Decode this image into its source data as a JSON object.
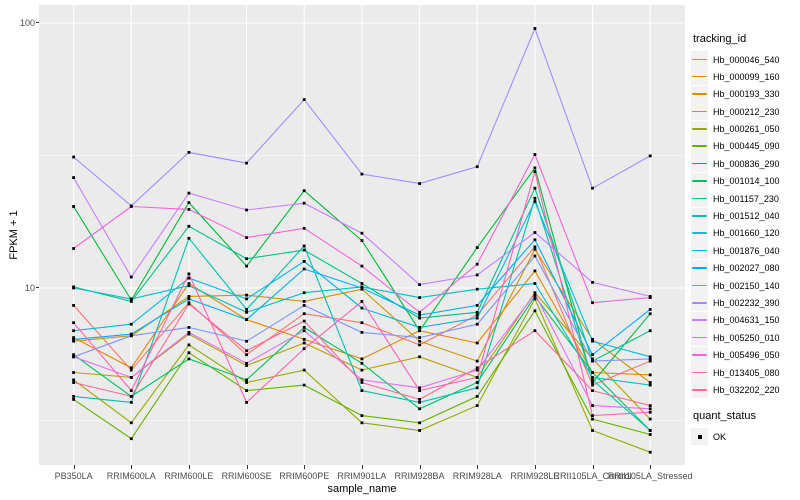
{
  "figure": {
    "background": "#FFFFFF",
    "panel_bg": "#EBEBEB",
    "grid_color": "#FFFFFF",
    "axis_text_color": "#4D4D4D",
    "axis_title_color": "#000000",
    "point_color": "#000000"
  },
  "chart_data": {
    "type": "line",
    "title": "",
    "xlabel": "sample_name",
    "ylabel": "FPKM + 1",
    "y_scale": "log10",
    "ylim": [
      2.15,
      117
    ],
    "y_ticks": [
      100,
      10
    ],
    "y_tick_labels": [
      "100",
      "10"
    ],
    "y_minor_ticks": [
      31.62,
      3.162
    ],
    "grid": "on",
    "legend_position": "right",
    "point_shape": "filled-square",
    "categories": [
      "PB350LA",
      "RRIM600LA",
      "RRIM600LE",
      "RRIM600SE",
      "RRIM600PE",
      "RRIM901LA",
      "RRIM928BA",
      "RRIM928LA",
      "RRIM928LE",
      "RRII105LA_Control",
      "RRII105LA_Stressed"
    ],
    "series": [
      {
        "name": "Hb_000046_540",
        "color": "#F8766D",
        "values": [
          8.6,
          4.9,
          8.8,
          5.6,
          8.0,
          7.4,
          6.1,
          7.9,
          14.3,
          4.3,
          5.3
        ]
      },
      {
        "name": "Hb_000099_160",
        "color": "#E58700",
        "values": [
          6.5,
          5.0,
          10.4,
          7.6,
          6.4,
          5.4,
          6.9,
          6.2,
          11.6,
          4.8,
          4.7
        ]
      },
      {
        "name": "Hb_000193_330",
        "color": "#CF9400",
        "values": [
          6.3,
          6.6,
          9.3,
          9.4,
          8.9,
          9.9,
          6.3,
          5.3,
          14.0,
          6.4,
          4.4
        ]
      },
      {
        "name": "Hb_000212_230",
        "color": "#B79F00",
        "values": [
          4.8,
          4.6,
          6.7,
          5.1,
          6.2,
          4.9,
          5.5,
          4.6,
          9.6,
          5.4,
          3.2
        ]
      },
      {
        "name": "Hb_000261_050",
        "color": "#95A900",
        "values": [
          4.5,
          3.1,
          6.1,
          4.4,
          4.9,
          3.1,
          2.9,
          3.6,
          9.1,
          2.9,
          2.4
        ]
      },
      {
        "name": "Hb_000445_090",
        "color": "#64B200",
        "values": [
          3.8,
          2.7,
          5.7,
          4.1,
          4.3,
          3.3,
          3.1,
          3.9,
          8.2,
          3.2,
          2.8
        ]
      },
      {
        "name": "Hb_000836_290",
        "color": "#00BA38",
        "values": [
          20.3,
          9.0,
          21.0,
          12.1,
          23.3,
          15.1,
          6.9,
          14.2,
          28.4,
          4.4,
          8.0
        ]
      },
      {
        "name": "Hb_001014_100",
        "color": "#00BF63",
        "values": [
          5.6,
          3.9,
          5.4,
          4.5,
          7.1,
          5.2,
          3.5,
          4.4,
          9.3,
          4.8,
          2.9
        ]
      },
      {
        "name": "Hb_001157_230",
        "color": "#00C08B",
        "values": [
          10.1,
          8.9,
          17.1,
          12.9,
          13.9,
          10.4,
          7.7,
          8.1,
          23.8,
          5.3,
          6.9
        ]
      },
      {
        "name": "Hb_001512_040",
        "color": "#00C0AC",
        "values": [
          3.9,
          3.7,
          15.4,
          8.3,
          14.4,
          4.1,
          3.7,
          4.2,
          21.8,
          4.5,
          2.9
        ]
      },
      {
        "name": "Hb_001660_120",
        "color": "#00BFC4",
        "values": [
          10.0,
          9.1,
          10.2,
          8.1,
          9.6,
          10.1,
          9.2,
          9.9,
          10.4,
          4.6,
          4.3
        ]
      },
      {
        "name": "Hb_001876_040",
        "color": "#00B9E3",
        "values": [
          6.9,
          7.3,
          10.9,
          9.1,
          12.6,
          8.4,
          7.1,
          7.7,
          21.2,
          6.3,
          5.5
        ]
      },
      {
        "name": "Hb_002027_080",
        "color": "#00ACFC",
        "values": [
          6.4,
          6.7,
          9.1,
          7.6,
          11.8,
          10.0,
          7.9,
          8.6,
          15.2,
          5.6,
          8.3
        ]
      },
      {
        "name": "Hb_002150_140",
        "color": "#7C96FF",
        "values": [
          5.5,
          6.6,
          7.1,
          6.3,
          8.6,
          6.8,
          6.5,
          7.3,
          13.2,
          5.3,
          5.4
        ]
      },
      {
        "name": "Hb_002232_390",
        "color": "#A58AFF",
        "values": [
          31.2,
          20.4,
          32.5,
          29.6,
          51.4,
          26.9,
          24.8,
          28.7,
          95.3,
          23.8,
          31.5
        ]
      },
      {
        "name": "Hb_004631_150",
        "color": "#C77CFF",
        "values": [
          26.1,
          11.0,
          22.8,
          19.7,
          20.9,
          16.1,
          10.3,
          11.2,
          16.2,
          10.5,
          9.3
        ]
      },
      {
        "name": "Hb_005250_010",
        "color": "#E26EF7",
        "values": [
          5.5,
          4.6,
          6.8,
          5.2,
          6.9,
          4.5,
          4.2,
          4.9,
          9.5,
          3.6,
          3.5
        ]
      },
      {
        "name": "Hb_005496_050",
        "color": "#F564D8",
        "values": [
          14.1,
          20.3,
          19.8,
          15.5,
          16.8,
          12.1,
          8.1,
          12.3,
          31.9,
          8.8,
          9.2
        ]
      },
      {
        "name": "Hb_013405_080",
        "color": "#FF63B6",
        "values": [
          7.4,
          4.1,
          11.3,
          3.7,
          5.9,
          8.9,
          4.1,
          4.6,
          27.5,
          3.3,
          3.4
        ]
      },
      {
        "name": "Hb_032202_220",
        "color": "#FF6A98",
        "values": [
          4.4,
          3.9,
          8.7,
          5.8,
          7.5,
          4.4,
          3.8,
          5.0,
          6.9,
          4.1,
          3.6
        ]
      }
    ]
  },
  "legend": {
    "tracking_title": "tracking_id",
    "quant_title": "quant_status",
    "quant_status_items": [
      {
        "label": "OK",
        "color": "#000000"
      }
    ],
    "key_bg": "#F2F2F2"
  }
}
